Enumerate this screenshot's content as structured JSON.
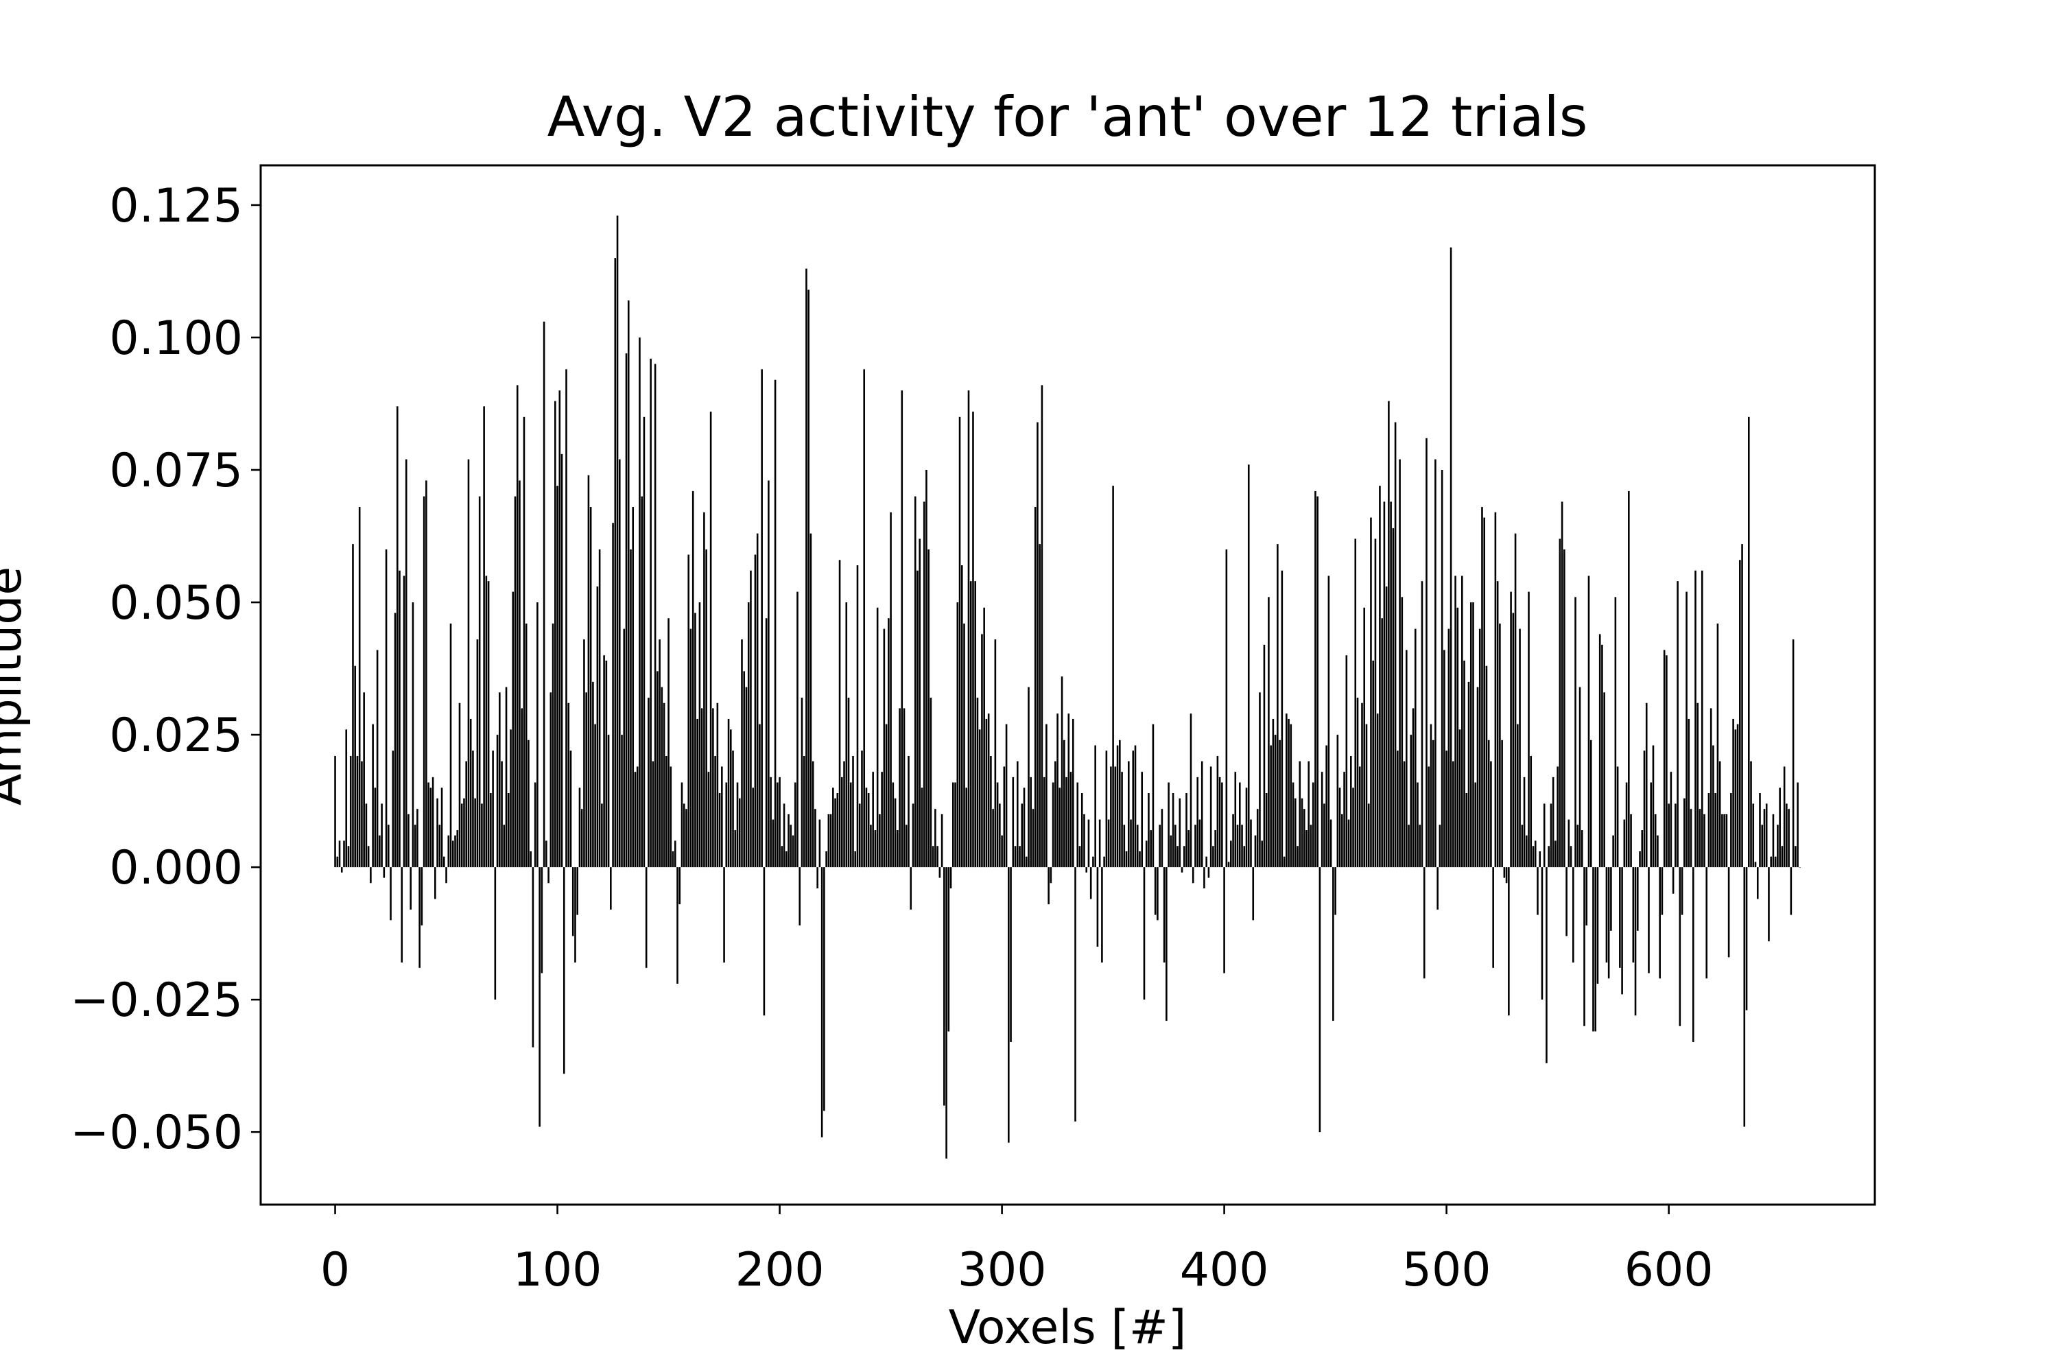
{
  "chart_data": {
    "type": "bar",
    "title": "Avg. V2 activity for 'ant' over 12 trials",
    "xlabel": "Voxels [#]",
    "ylabel": "Amplitude",
    "color": "#000000",
    "xlim": [
      -33.5,
      692.7
    ],
    "ylim": [
      -0.0637,
      0.1325
    ],
    "xticks": [
      0,
      100,
      200,
      300,
      400,
      500,
      600
    ],
    "yticks": [
      {
        "value": -0.05,
        "label": "−0.050"
      },
      {
        "value": -0.025,
        "label": "−0.025"
      },
      {
        "value": 0,
        "label": "0.000"
      },
      0.025,
      {
        "value": 0.05,
        "label": "0.050"
      },
      0.075,
      {
        "value": 0.1,
        "label": "0.100"
      },
      0.125
    ],
    "grid": false,
    "x": [
      0,
      1,
      2,
      3,
      4,
      5,
      6,
      7,
      8,
      9,
      10,
      11,
      12,
      13,
      14,
      15,
      16,
      17,
      18,
      19,
      20,
      21,
      22,
      23,
      24,
      25,
      26,
      27,
      28,
      29,
      30,
      31,
      32,
      33,
      34,
      35,
      36,
      37,
      38,
      39,
      40,
      41,
      42,
      43,
      44,
      45,
      46,
      47,
      48,
      49,
      50,
      51,
      52,
      53,
      54,
      55,
      56,
      57,
      58,
      59,
      60,
      61,
      62,
      63,
      64,
      65,
      66,
      67,
      68,
      69,
      70,
      71,
      72,
      73,
      74,
      75,
      76,
      77,
      78,
      79,
      80,
      81,
      82,
      83,
      84,
      85,
      86,
      87,
      88,
      89,
      90,
      91,
      92,
      93,
      94,
      95,
      96,
      97,
      98,
      99,
      100,
      101,
      102,
      103,
      104,
      105,
      106,
      107,
      108,
      109,
      110,
      111,
      112,
      113,
      114,
      115,
      116,
      117,
      118,
      119,
      120,
      121,
      122,
      123,
      124,
      125,
      126,
      127,
      128,
      129,
      130,
      131,
      132,
      133,
      134,
      135,
      136,
      137,
      138,
      139,
      140,
      141,
      142,
      143,
      144,
      145,
      146,
      147,
      148,
      149,
      150,
      151,
      152,
      153,
      154,
      155,
      156,
      157,
      158,
      159,
      160,
      161,
      162,
      163,
      164,
      165,
      166,
      167,
      168,
      169,
      170,
      171,
      172,
      173,
      174,
      175,
      176,
      177,
      178,
      179,
      180,
      181,
      182,
      183,
      184,
      185,
      186,
      187,
      188,
      189,
      190,
      191,
      192,
      193,
      194,
      195,
      196,
      197,
      198,
      199,
      200,
      201,
      202,
      203,
      204,
      205,
      206,
      207,
      208,
      209,
      210,
      211,
      212,
      213,
      214,
      215,
      216,
      217,
      218,
      219,
      220,
      221,
      222,
      223,
      224,
      225,
      226,
      227,
      228,
      229,
      230,
      231,
      232,
      233,
      234,
      235,
      236,
      237,
      238,
      239,
      240,
      241,
      242,
      243,
      244,
      245,
      246,
      247,
      248,
      249,
      250,
      251,
      252,
      253,
      254,
      255,
      256,
      257,
      258,
      259,
      260,
      261,
      262,
      263,
      264,
      265,
      266,
      267,
      268,
      269,
      270,
      271,
      272,
      273,
      274,
      275,
      276,
      277,
      278,
      279,
      280,
      281,
      282,
      283,
      284,
      285,
      286,
      287,
      288,
      289,
      290,
      291,
      292,
      293,
      294,
      295,
      296,
      297,
      298,
      299,
      300,
      301,
      302,
      303,
      304,
      305,
      306,
      307,
      308,
      309,
      310,
      311,
      312,
      313,
      314,
      315,
      316,
      317,
      318,
      319,
      320,
      321,
      322,
      323,
      324,
      325,
      326,
      327,
      328,
      329,
      330,
      331,
      332,
      333,
      334,
      335,
      336,
      337,
      338,
      339,
      340,
      341,
      342,
      343,
      344,
      345,
      346,
      347,
      348,
      349,
      350,
      351,
      352,
      353,
      354,
      355,
      356,
      357,
      358,
      359,
      360,
      361,
      362,
      363,
      364,
      365,
      366,
      367,
      368,
      369,
      370,
      371,
      372,
      373,
      374,
      375,
      376,
      377,
      378,
      379,
      380,
      381,
      382,
      383,
      384,
      385,
      386,
      387,
      388,
      389,
      390,
      391,
      392,
      393,
      394,
      395,
      396,
      397,
      398,
      399,
      400,
      401,
      402,
      403,
      404,
      405,
      406,
      407,
      408,
      409,
      410,
      411,
      412,
      413,
      414,
      415,
      416,
      417,
      418,
      419,
      420,
      421,
      422,
      423,
      424,
      425,
      426,
      427,
      428,
      429,
      430,
      431,
      432,
      433,
      434,
      435,
      436,
      437,
      438,
      439,
      440,
      441,
      442,
      443,
      444,
      445,
      446,
      447,
      448,
      449,
      450,
      451,
      452,
      453,
      454,
      455,
      456,
      457,
      458,
      459,
      460,
      461,
      462,
      463,
      464,
      465,
      466,
      467,
      468,
      469,
      470,
      471,
      472,
      473,
      474,
      475,
      476,
      477,
      478,
      479,
      480,
      481,
      482,
      483,
      484,
      485,
      486,
      487,
      488,
      489,
      490,
      491,
      492,
      493,
      494,
      495,
      496,
      497,
      498,
      499,
      500,
      501,
      502,
      503,
      504,
      505,
      506,
      507,
      508,
      509,
      510,
      511,
      512,
      513,
      514,
      515,
      516,
      517,
      518,
      519,
      520,
      521,
      522,
      523,
      524,
      525,
      526,
      527,
      528,
      529,
      530,
      531,
      532,
      533,
      534,
      535,
      536,
      537,
      538,
      539,
      540,
      541,
      542,
      543,
      544,
      545,
      546,
      547,
      548,
      549,
      550,
      551,
      552,
      553,
      554,
      555,
      556,
      557,
      558,
      559,
      560,
      561,
      562,
      563,
      564,
      565,
      566,
      567,
      568,
      569,
      570,
      571,
      572,
      573,
      574,
      575,
      576,
      577,
      578,
      579,
      580,
      581,
      582,
      583,
      584,
      585,
      586,
      587,
      588,
      589,
      590,
      591,
      592,
      593,
      594,
      595,
      596,
      597,
      598,
      599,
      600,
      601,
      602,
      603,
      604,
      605,
      606,
      607,
      608,
      609,
      610,
      611,
      612,
      613,
      614,
      615,
      616,
      617,
      618,
      619,
      620,
      621,
      622,
      623,
      624,
      625,
      626,
      627,
      628,
      629,
      630,
      631,
      632,
      633,
      634,
      635,
      636,
      637,
      638,
      639,
      640,
      641,
      642,
      643,
      644,
      645,
      646,
      647,
      648,
      649,
      650,
      651,
      652,
      653,
      654,
      655,
      656,
      657,
      658,
      659
    ],
    "values": [
      0.021,
      0.002,
      0.005,
      -0.001,
      0.005,
      0.026,
      0.004,
      0.021,
      0.061,
      0.038,
      0.021,
      0.068,
      0.02,
      0.033,
      0.012,
      0.004,
      -0.003,
      0.027,
      0.015,
      0.041,
      0.006,
      0.012,
      -0.002,
      0.06,
      0.008,
      -0.01,
      0.022,
      0.048,
      0.087,
      0.056,
      -0.018,
      0.055,
      0.077,
      0.01,
      -0.008,
      0.05,
      0.008,
      0.011,
      -0.019,
      -0.011,
      0.07,
      0.073,
      0.016,
      0.015,
      0.017,
      -0.006,
      0.013,
      0.008,
      0.015,
      0.002,
      -0.003,
      0.006,
      0.046,
      0.005,
      0.006,
      0.007,
      0.031,
      0.012,
      0.013,
      0.02,
      0.077,
      0.028,
      0.022,
      0.013,
      0.043,
      0.07,
      0.012,
      0.087,
      0.055,
      0.054,
      0.014,
      0.022,
      -0.025,
      0.025,
      0.033,
      0.02,
      0.008,
      0.034,
      0.014,
      0.026,
      0.052,
      0.07,
      0.091,
      0.073,
      0.03,
      0.085,
      0.046,
      0.024,
      0.003,
      -0.034,
      0.016,
      0.05,
      -0.049,
      -0.02,
      0.103,
      0.005,
      -0.003,
      0.033,
      0.046,
      0.088,
      0.072,
      0.09,
      0.078,
      -0.039,
      0.094,
      0.031,
      0.022,
      -0.013,
      -0.018,
      -0.009,
      0.015,
      0.011,
      0.043,
      0.033,
      0.074,
      0.068,
      0.035,
      0.027,
      0.053,
      0.06,
      0.012,
      0.04,
      0.039,
      0.025,
      -0.008,
      0.065,
      0.115,
      0.123,
      0.077,
      0.025,
      0.045,
      0.097,
      0.107,
      0.06,
      0.068,
      0.018,
      0.019,
      0.1,
      0.07,
      0.085,
      -0.019,
      0.032,
      0.096,
      0.02,
      0.095,
      0.037,
      0.043,
      0.034,
      0.031,
      0.021,
      0.047,
      0.019,
      0.003,
      0.005,
      -0.022,
      -0.007,
      0.016,
      0.012,
      0.011,
      0.059,
      0.045,
      0.071,
      0.048,
      0.028,
      0.05,
      0.03,
      0.067,
      0.06,
      0.018,
      0.086,
      0.03,
      0.021,
      0.031,
      0.014,
      0.019,
      -0.018,
      0.016,
      0.028,
      0.026,
      0.022,
      0.007,
      0.016,
      0.013,
      0.043,
      0.037,
      0.034,
      0.05,
      0.056,
      0.015,
      0.059,
      0.063,
      0.027,
      0.094,
      -0.028,
      0.047,
      0.073,
      0.017,
      0.009,
      0.092,
      0.016,
      0.017,
      0.004,
      0.012,
      0.003,
      0.01,
      0.008,
      0.006,
      0.016,
      0.052,
      -0.011,
      0.032,
      0.021,
      0.113,
      0.109,
      0.063,
      0.02,
      0.011,
      -0.004,
      0.009,
      -0.051,
      -0.046,
      0.003,
      0.01,
      0.01,
      0.015,
      0.013,
      0.014,
      0.058,
      0.017,
      0.02,
      0.05,
      0.032,
      0.016,
      0.021,
      0.003,
      0.057,
      0.012,
      0.022,
      0.094,
      0.015,
      0.014,
      0.008,
      0.018,
      0.007,
      0.049,
      0.01,
      0.018,
      0.045,
      0.027,
      0.047,
      0.067,
      0.016,
      0.013,
      0.007,
      0.03,
      0.09,
      0.03,
      0.008,
      0.021,
      -0.008,
      0.012,
      0.07,
      0.056,
      0.062,
      0.015,
      0.069,
      0.075,
      0.06,
      0.032,
      0.004,
      0.011,
      0.004,
      -0.002,
      0.01,
      -0.045,
      -0.055,
      -0.031,
      -0.004,
      0.016,
      0.016,
      0.05,
      0.085,
      0.057,
      0.046,
      0.015,
      0.09,
      0.054,
      0.086,
      0.054,
      0.032,
      0.026,
      0.044,
      0.049,
      0.028,
      0.029,
      0.021,
      0.011,
      0.043,
      0.016,
      0.012,
      0.006,
      0.019,
      0.027,
      -0.052,
      -0.033,
      0.017,
      0.004,
      0.02,
      0.004,
      0.012,
      0.015,
      0.002,
      0.034,
      0.017,
      0.011,
      0.068,
      0.084,
      0.061,
      0.091,
      0.017,
      0.027,
      -0.007,
      -0.003,
      0.016,
      0.02,
      0.029,
      0.015,
      0.036,
      0.024,
      0.017,
      0.029,
      0.018,
      0.028,
      -0.048,
      0.016,
      0.004,
      0.014,
      0.01,
      -0.001,
      0.009,
      -0.006,
      0.002,
      0.023,
      -0.015,
      0.009,
      -0.018,
      0.002,
      0.022,
      0.009,
      0.019,
      0.072,
      0.019,
      0.023,
      0.024,
      0.018,
      0.008,
      0.003,
      0.02,
      0.009,
      0.022,
      0.023,
      0.008,
      0.003,
      0.018,
      -0.025,
      0.005,
      0.014,
      0.007,
      0.027,
      -0.009,
      -0.01,
      0.008,
      0.011,
      -0.018,
      -0.029,
      0.016,
      0.006,
      0.014,
      0.008,
      0.004,
      0.013,
      -0.001,
      0.004,
      0.014,
      0.007,
      0.029,
      -0.003,
      0.008,
      0.017,
      0.009,
      0.02,
      -0.004,
      0.002,
      -0.002,
      0.019,
      0.004,
      0.007,
      0.021,
      0.017,
      0.016,
      -0.02,
      0.06,
      0.001,
      0.005,
      0.01,
      0.018,
      0.008,
      0.016,
      0.008,
      0.004,
      0.015,
      0.076,
      0.009,
      -0.01,
      0.006,
      0.011,
      0.033,
      0.005,
      0.042,
      0.014,
      0.051,
      0.023,
      0.028,
      0.025,
      0.061,
      0.024,
      0.056,
      0.002,
      0.029,
      0.028,
      0.027,
      0.016,
      0.013,
      0.004,
      0.02,
      0.013,
      0.011,
      0.007,
      0.02,
      0.008,
      0.016,
      0.071,
      0.07,
      -0.05,
      0.018,
      0.012,
      0.023,
      0.055,
      0.009,
      -0.029,
      -0.009,
      0.025,
      0.015,
      0.01,
      0.018,
      0.04,
      0.009,
      0.021,
      0.015,
      0.062,
      0.032,
      0.019,
      0.031,
      0.049,
      0.027,
      0.012,
      0.066,
      0.039,
      0.062,
      0.029,
      0.072,
      0.047,
      0.069,
      0.053,
      0.088,
      0.069,
      0.064,
      0.084,
      0.022,
      0.077,
      0.051,
      0.02,
      0.041,
      0.008,
      0.025,
      0.03,
      0.045,
      0.016,
      0.008,
      0.054,
      -0.021,
      0.081,
      0.019,
      0.027,
      0.024,
      0.077,
      -0.008,
      0.008,
      0.075,
      0.041,
      0.022,
      0.045,
      0.117,
      0.02,
      0.055,
      0.049,
      0.026,
      0.055,
      0.039,
      0.014,
      0.035,
      0.05,
      0.05,
      0.016,
      0.034,
      0.045,
      0.068,
      0.066,
      0.038,
      0.024,
      0.02,
      -0.019,
      0.067,
      0.054,
      0.046,
      0.024,
      -0.002,
      -0.003,
      -0.028,
      0.052,
      0.048,
      0.063,
      0.027,
      0.045,
      0.008,
      0.017,
      0.006,
      0.052,
      0.021,
      0.004,
      0.005,
      -0.009,
      0.003,
      -0.025,
      0.012,
      -0.037,
      0.004,
      0.012,
      0.017,
      0.005,
      0.019,
      0.062,
      0.069,
      0.06,
      -0.013,
      0.009,
      0.004,
      -0.018,
      0.051,
      0.008,
      0.034,
      0.007,
      -0.03,
      -0.011,
      0.055,
      0.024,
      -0.031,
      -0.031,
      -0.022,
      0.044,
      0.042,
      0.033,
      -0.018,
      -0.021,
      -0.012,
      0.006,
      0.051,
      0.019,
      -0.019,
      -0.024,
      0.009,
      0.016,
      0.071,
      0.01,
      -0.018,
      -0.028,
      -0.012,
      0.003,
      0.007,
      0.022,
      0.031,
      -0.02,
      0.016,
      0.023,
      0.01,
      0.006,
      -0.021,
      -0.009,
      0.041,
      0.04,
      0.012,
      0.018,
      -0.005,
      0.012,
      0.054,
      -0.03,
      -0.009,
      0.013,
      0.052,
      0.028,
      0.011,
      -0.033,
      0.056,
      0.031,
      0.011,
      0.056,
      0.01,
      -0.021,
      0.014,
      0.03,
      0.023,
      0.014,
      0.046,
      0.02,
      0.01,
      0.01,
      0.01,
      -0.017,
      0.014,
      0.028,
      0.026,
      0.027,
      0.058,
      0.061,
      -0.049,
      -0.027,
      0.085,
      0.02,
      0.012,
      0.001,
      -0.006,
      0.014,
      0.008,
      0.011,
      0.012,
      -0.014,
      0.002,
      0.01,
      0.002,
      0.008,
      0.015,
      0.004,
      0.019,
      0.012,
      0.011,
      -0.009,
      0.043,
      0.004,
      0.016,
      0.0
    ]
  }
}
